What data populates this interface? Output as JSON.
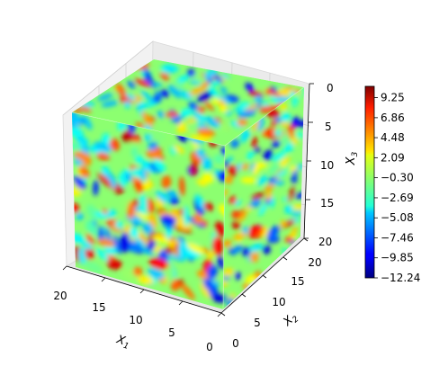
{
  "chart_data": {
    "type": "volume-slice-3d",
    "axes": {
      "x1": {
        "label": "X",
        "sub": "1",
        "ticks": [
          "20",
          "15",
          "10",
          "5",
          "0"
        ],
        "range": [
          0,
          20
        ]
      },
      "x2": {
        "label": "X",
        "sub": "2",
        "ticks": [
          "0",
          "5",
          "10",
          "15",
          "20"
        ],
        "range": [
          0,
          20
        ]
      },
      "x3": {
        "label": "X",
        "sub": "3",
        "ticks": [
          "0",
          "5",
          "10",
          "15",
          "20"
        ],
        "range": [
          0,
          20
        ]
      }
    },
    "colorbar": {
      "ticks": [
        "9.25",
        "6.86",
        "4.48",
        "2.09",
        "−0.30",
        "−2.69",
        "−5.08",
        "−7.46",
        "−9.85",
        "−12.24"
      ],
      "vmin": -12.24,
      "vmax": 10.6,
      "colormap": "jet"
    },
    "grid": true
  }
}
